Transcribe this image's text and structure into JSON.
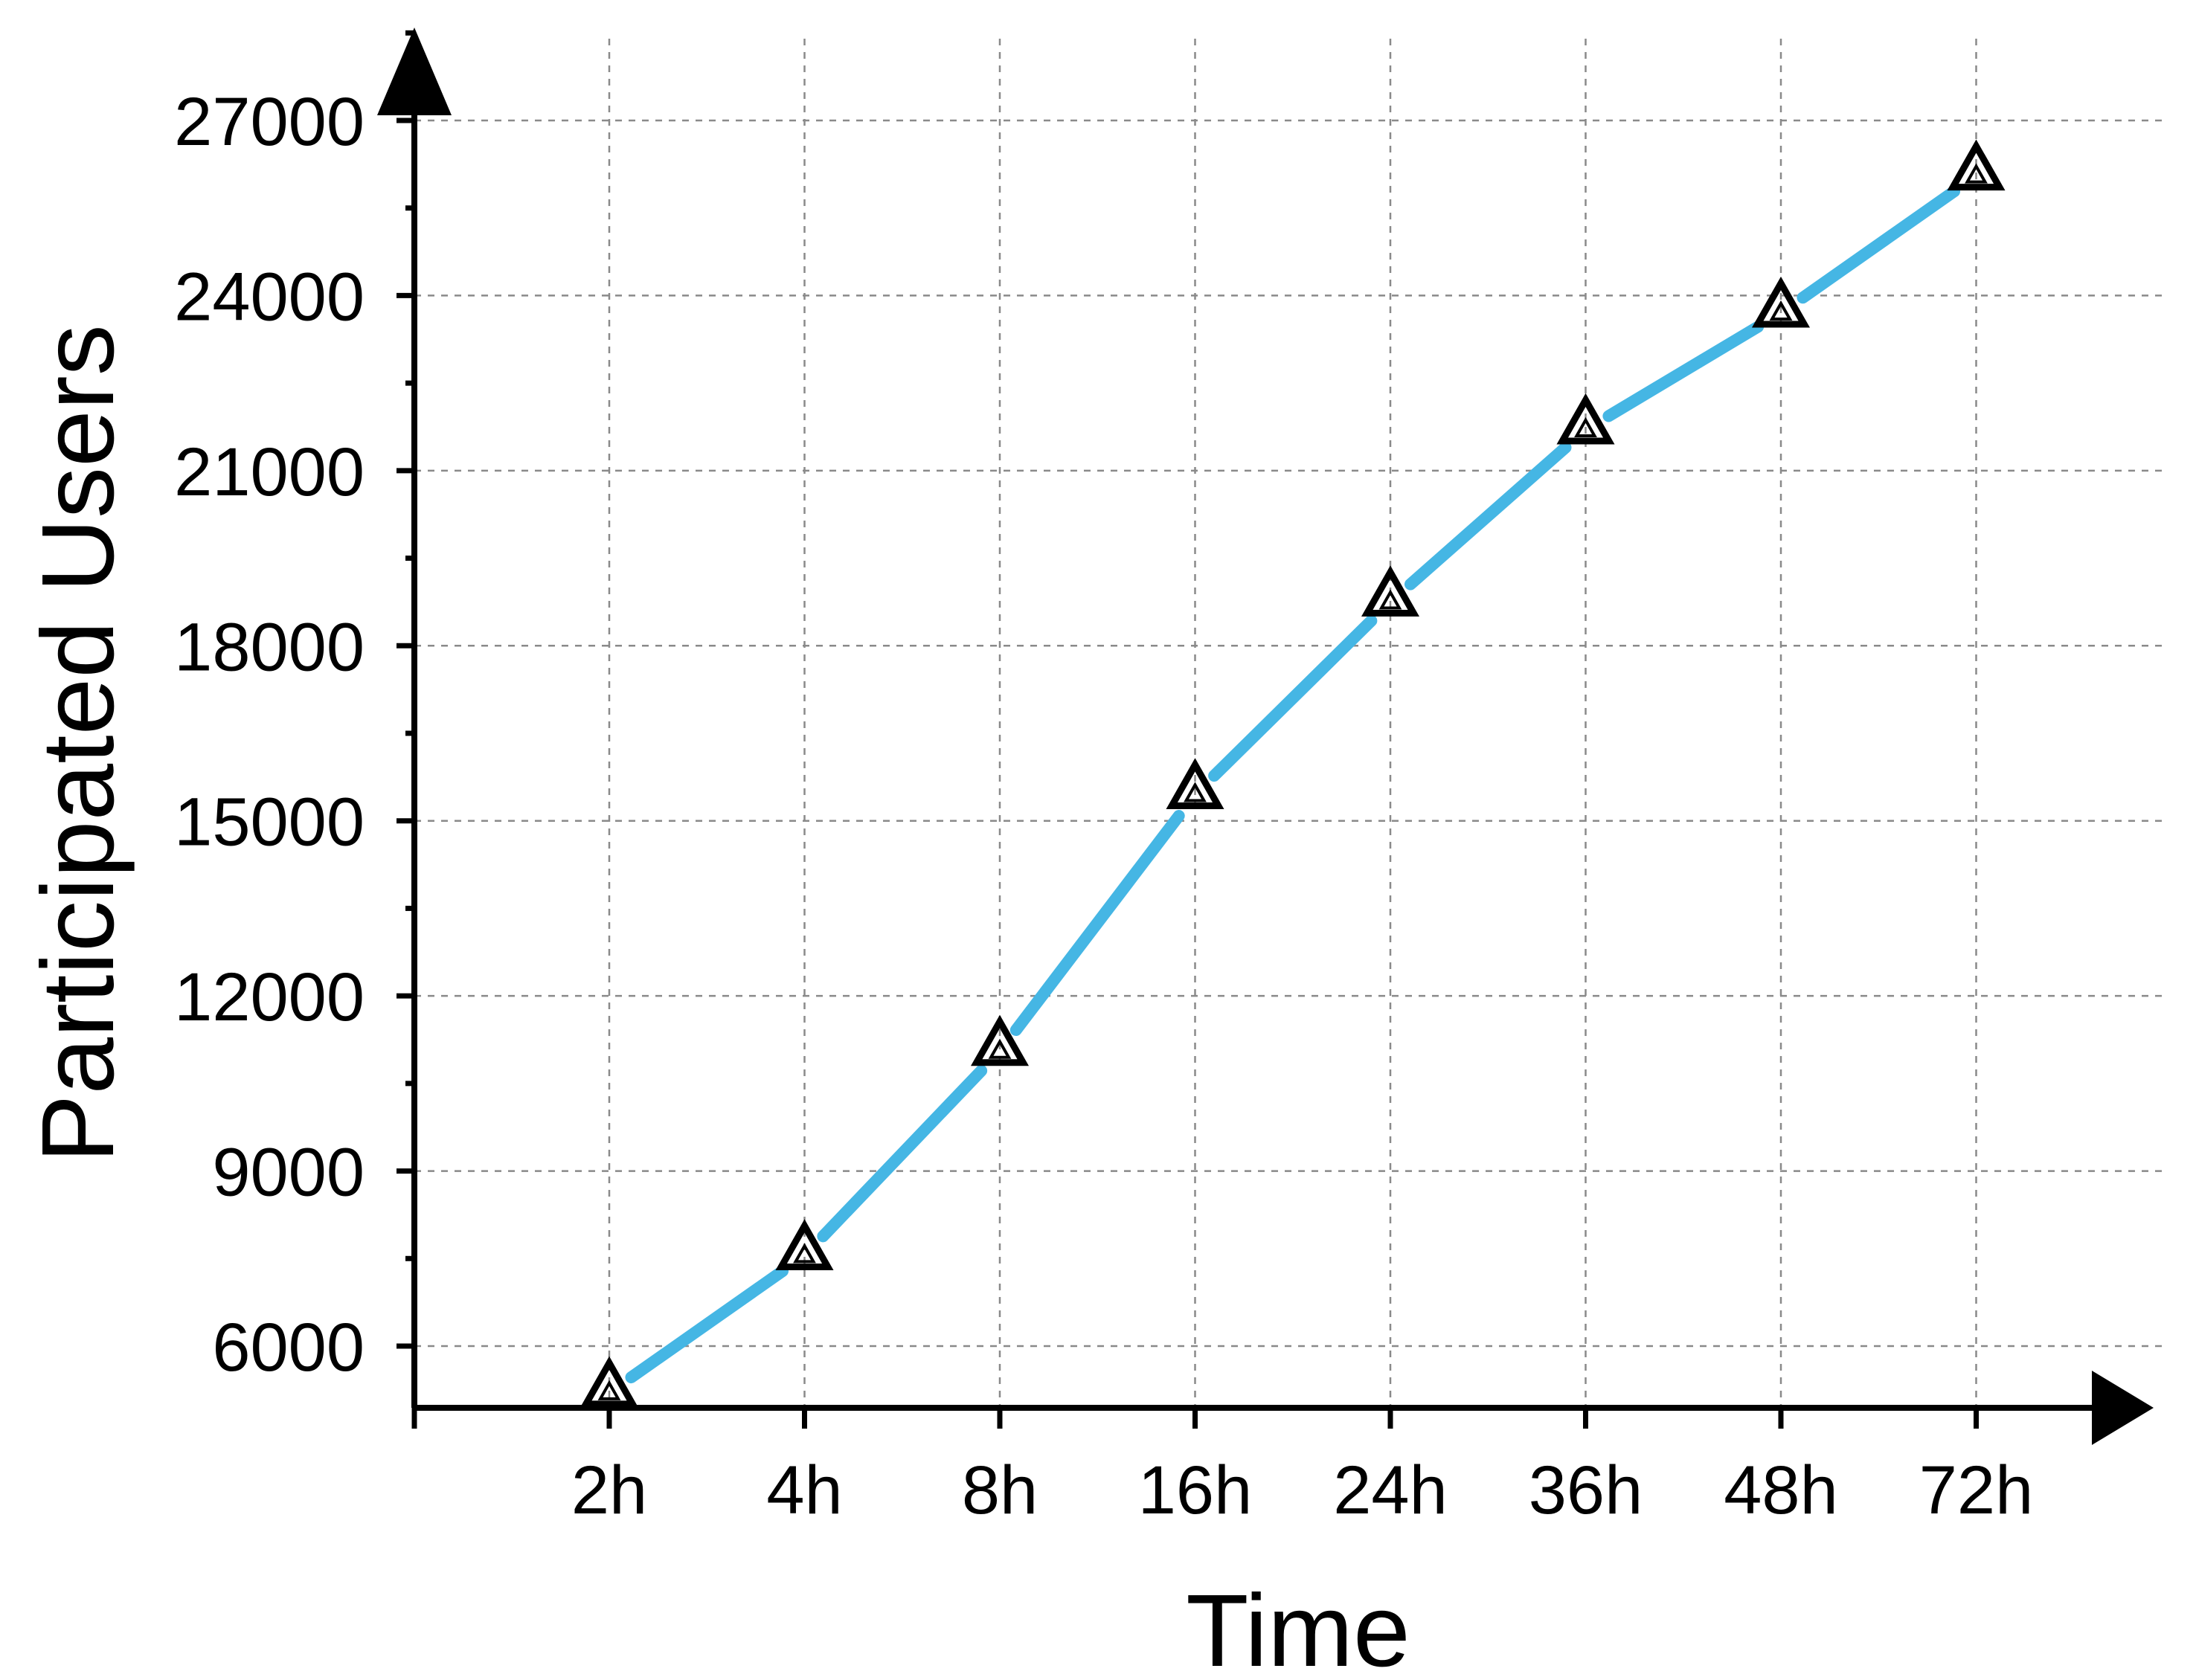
{
  "chart_data": {
    "type": "line",
    "title": "",
    "xlabel": "Time",
    "ylabel": "Participated Users",
    "categories": [
      "2h",
      "4h",
      "8h",
      "16h",
      "24h",
      "36h",
      "48h",
      "72h"
    ],
    "series": [
      {
        "values": [
          5200,
          7550,
          11050,
          15450,
          18750,
          21700,
          23700,
          26050
        ]
      }
    ],
    "ylim": [
      5000,
      27000
    ],
    "yticks": [
      "6000",
      "9000",
      "12000",
      "15000",
      "18000",
      "21000",
      "24000",
      "27000"
    ],
    "grid": true,
    "legend": "none",
    "line_color": "#45b6e4",
    "marker": "triangle-open",
    "marker_color": "#000000"
  }
}
